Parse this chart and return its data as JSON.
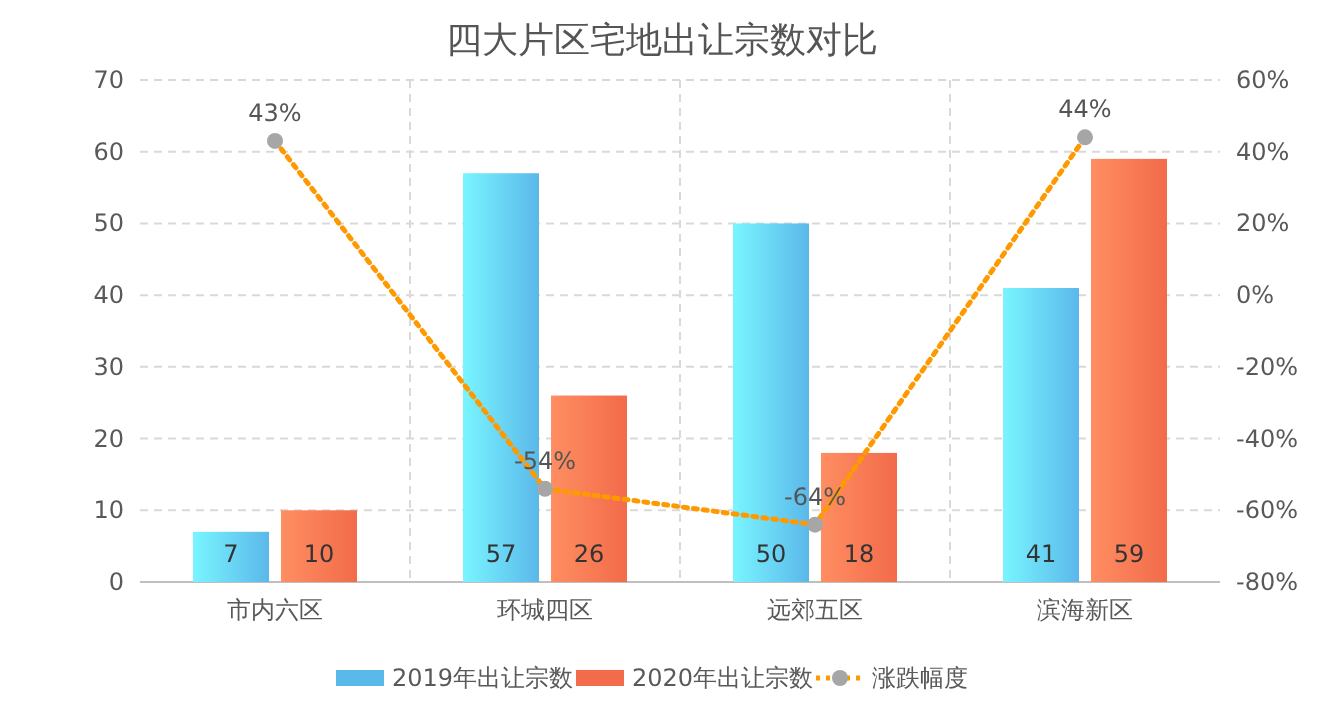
{
  "chart_data": {
    "type": "bar",
    "title": "四大片区宅地出让宗数对比",
    "categories": [
      "市内六区",
      "环城四区",
      "远郊五区",
      "滨海新区"
    ],
    "series": [
      {
        "name": "2019年出让宗数",
        "color": "#5bb8ea",
        "values": [
          7,
          57,
          50,
          41
        ],
        "value_labels": [
          "7",
          "57",
          "50",
          "41"
        ]
      },
      {
        "name": "2020年出让宗数",
        "color": "#f26b4a",
        "values": [
          10,
          26,
          18,
          59
        ],
        "value_labels": [
          "10",
          "26",
          "18",
          "59"
        ]
      },
      {
        "name": "涨跌幅度",
        "type": "line",
        "axis": "y2",
        "color": "#ff9900",
        "values": [
          43,
          -54,
          -64,
          44
        ],
        "value_labels": [
          "43%",
          "-54%",
          "-64%",
          "44%"
        ],
        "marker": "circle",
        "line_style": "dotted"
      }
    ],
    "ylim": [
      0,
      70
    ],
    "yticks": [
      0,
      10,
      20,
      30,
      40,
      50,
      60,
      70
    ],
    "y2lim": [
      -80,
      60
    ],
    "y2ticks": [
      {
        "value": -80,
        "label": "-80%"
      },
      {
        "value": -60,
        "label": "-60%"
      },
      {
        "value": -40,
        "label": "-40%"
      },
      {
        "value": -20,
        "label": "-20%"
      },
      {
        "value": 0,
        "label": "0%"
      },
      {
        "value": 20,
        "label": "20%"
      },
      {
        "value": 40,
        "label": "40%"
      },
      {
        "value": 60,
        "label": "60%"
      }
    ],
    "grid": true,
    "legend": "bottom right"
  }
}
